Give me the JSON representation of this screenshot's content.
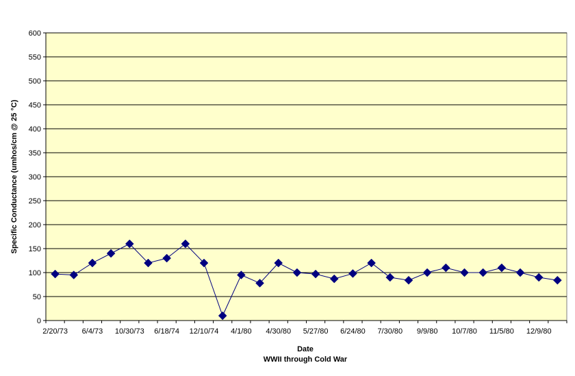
{
  "chart_data": {
    "type": "line",
    "title": "",
    "xlabel": "Date",
    "subtitle": "WWII through Cold War",
    "ylabel": "Specific Conductance (umhos/cm @ 25 °C)",
    "ylim": [
      0,
      600
    ],
    "y_ticks": [
      "0",
      "50",
      "100",
      "150",
      "200",
      "250",
      "300",
      "350",
      "400",
      "450",
      "500",
      "550",
      "600"
    ],
    "x_tick_labels": [
      "2/20/73",
      "6/4/73",
      "10/30/73",
      "6/18/74",
      "12/10/74",
      "4/1/80",
      "4/30/80",
      "5/27/80",
      "6/24/80",
      "7/30/80",
      "9/9/80",
      "10/7/80",
      "11/5/80",
      "12/9/80"
    ],
    "series": [
      {
        "values": [
          97,
          95,
          120,
          140,
          160,
          120,
          130,
          160,
          120,
          10,
          95,
          78,
          120,
          100,
          97,
          87,
          98,
          120,
          90,
          84,
          100,
          110,
          100,
          100,
          110,
          100,
          90,
          84
        ]
      }
    ],
    "grid": true,
    "legend": "none",
    "colors": {
      "plot_background": "#ffffcc",
      "series_color": "#000080",
      "line_color": "#000080",
      "gridline_color": "#000000"
    }
  }
}
